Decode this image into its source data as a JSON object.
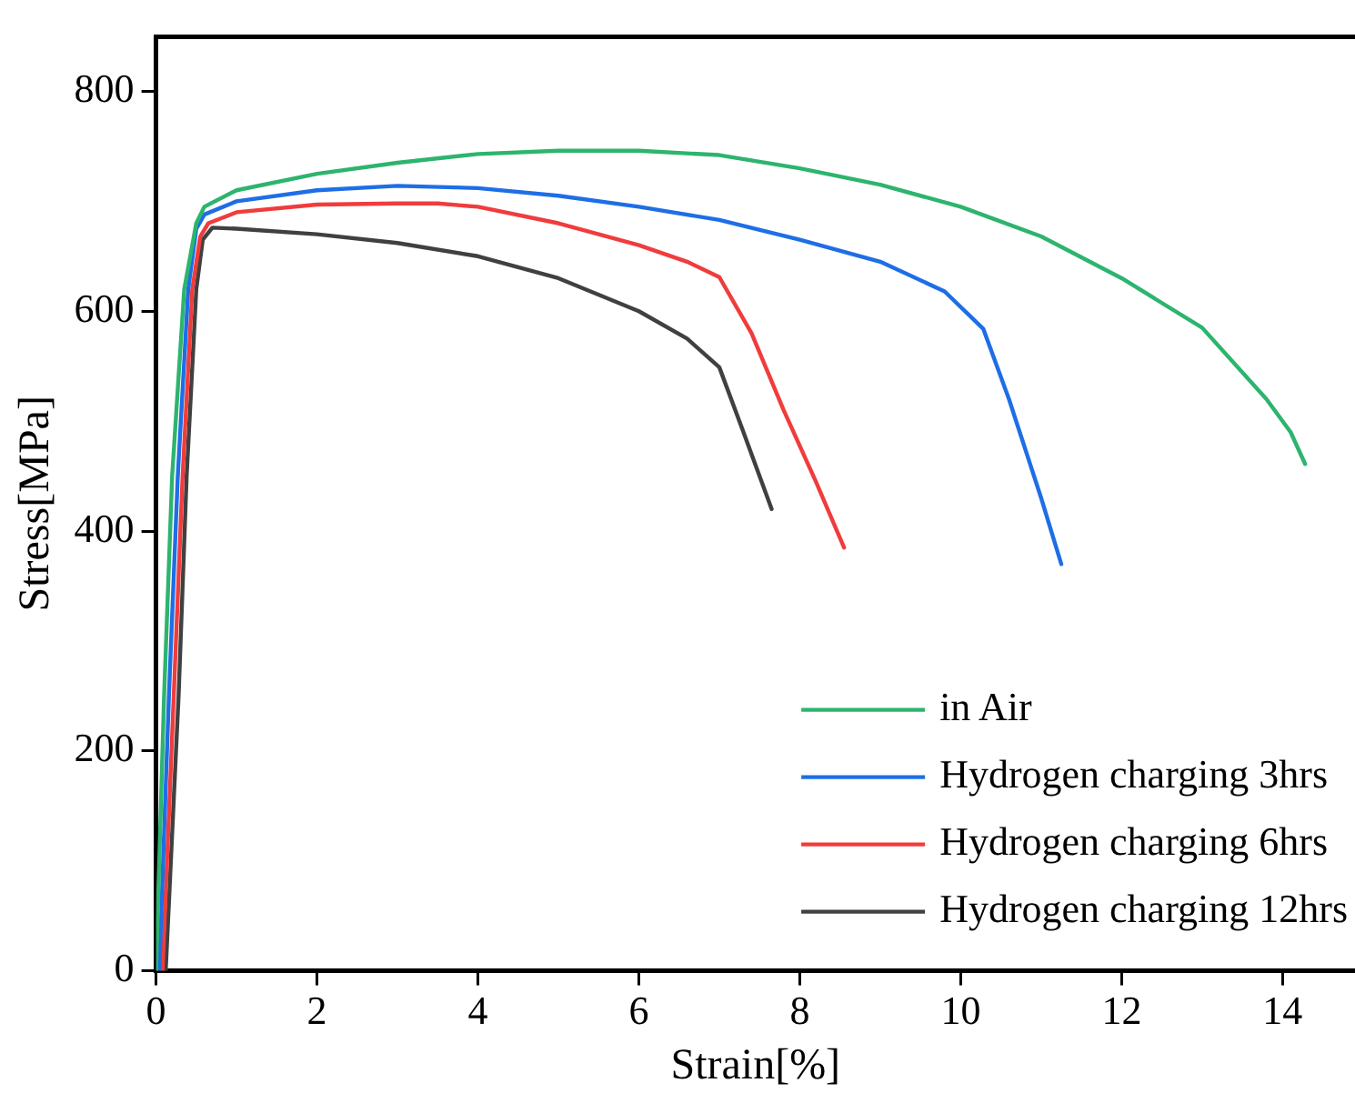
{
  "chart_data": {
    "type": "line",
    "xlabel": "Strain[%]",
    "ylabel": "Stress[MPa]",
    "xlim": [
      0,
      14.9
    ],
    "xticks": [
      0,
      2,
      4,
      6,
      8,
      10,
      12,
      14
    ],
    "ylim": [
      0,
      850
    ],
    "yticks": [
      0,
      200,
      400,
      600,
      800
    ],
    "grid": false,
    "legend": "bottom right",
    "marker": "none",
    "line_style": "solid",
    "series": [
      {
        "name": "in Air",
        "color": "#2db46e",
        "x": [
          0,
          0.1,
          0.2,
          0.35,
          0.5,
          0.6,
          1,
          2,
          3,
          4,
          5,
          6,
          7,
          8,
          9,
          10,
          11,
          12,
          13,
          13.8,
          14.1,
          14.28
        ],
        "values": [
          0,
          250,
          450,
          620,
          680,
          695,
          710,
          725,
          735,
          743,
          746,
          746,
          742,
          730,
          715,
          695,
          668,
          630,
          585,
          520,
          490,
          461
        ]
      },
      {
        "name": "Hydrogen charging 3hrs",
        "color": "#1e6ee6",
        "x": [
          0.04,
          0.16,
          0.27,
          0.4,
          0.5,
          0.6,
          1,
          2,
          3,
          4,
          5,
          6,
          7,
          8,
          9,
          9.8,
          10.28,
          10.6,
          11,
          11.25
        ],
        "values": [
          0,
          250,
          450,
          620,
          675,
          688,
          700,
          710,
          714,
          712,
          705,
          695,
          683,
          665,
          645,
          618,
          584,
          520,
          430,
          370
        ]
      },
      {
        "name": "Hydrogen charging 6hrs",
        "color": "#f03c3c",
        "x": [
          0.08,
          0.22,
          0.33,
          0.45,
          0.55,
          0.65,
          1,
          2,
          3,
          3.5,
          4,
          5,
          6,
          6.6,
          7,
          7.4,
          7.8,
          8.2,
          8.55
        ],
        "values": [
          0,
          250,
          450,
          620,
          668,
          680,
          690,
          697,
          698,
          698,
          695,
          680,
          660,
          645,
          631,
          580,
          510,
          445,
          385
        ]
      },
      {
        "name": "Hydrogen charging 12hrs",
        "color": "#404040",
        "x": [
          0.12,
          0.28,
          0.38,
          0.5,
          0.58,
          0.7,
          1,
          2,
          3,
          4,
          5,
          6,
          6.6,
          7,
          7.3,
          7.65
        ],
        "values": [
          0,
          250,
          450,
          620,
          665,
          676,
          675,
          670,
          662,
          650,
          630,
          600,
          575,
          549,
          490,
          420
        ]
      }
    ]
  }
}
